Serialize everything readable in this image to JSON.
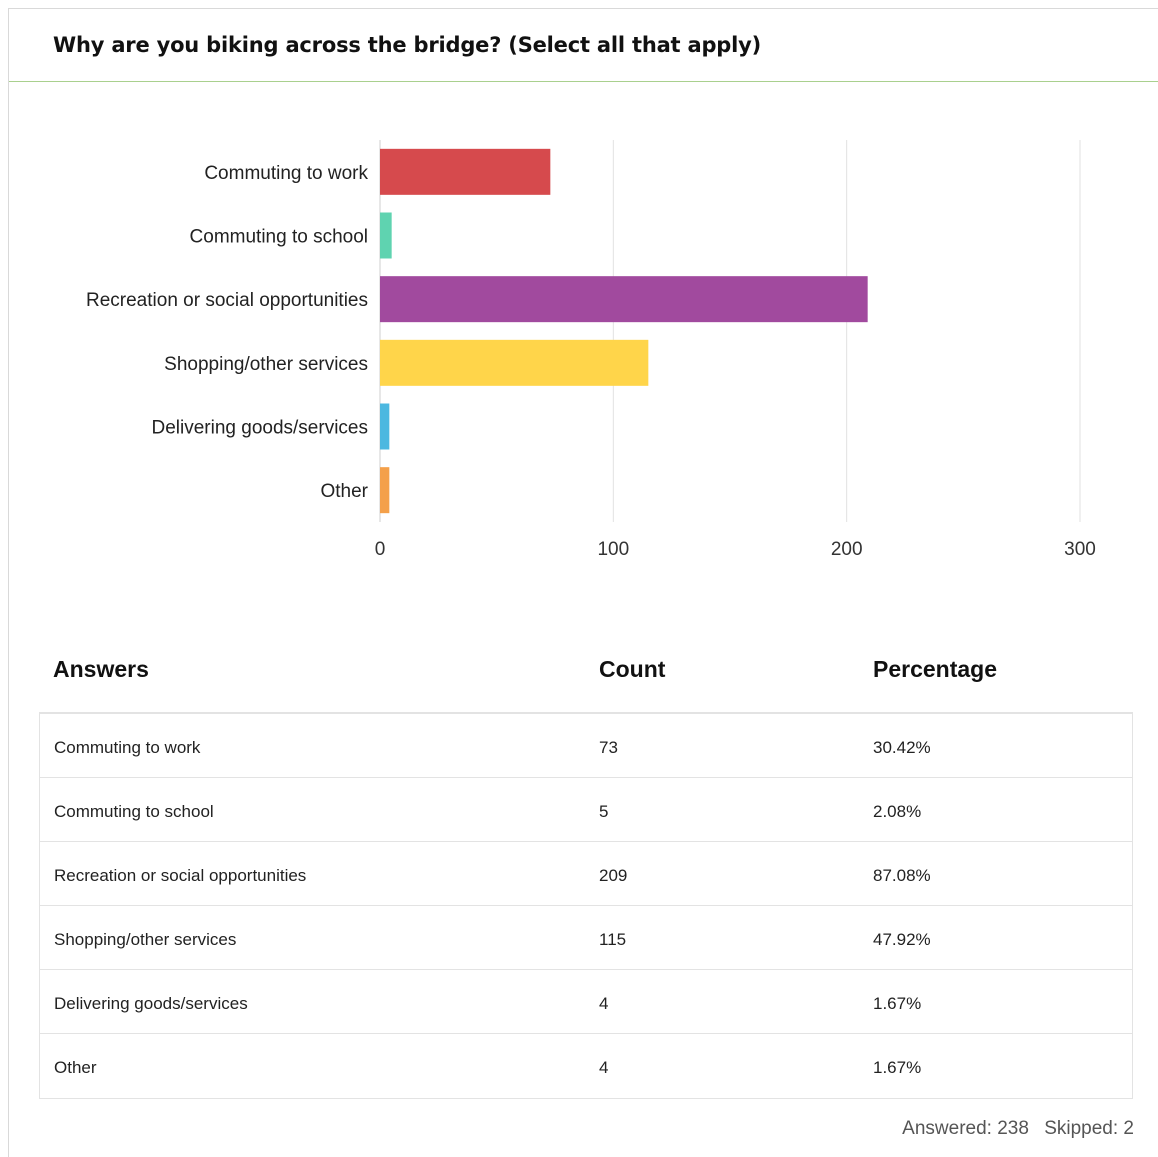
{
  "question": {
    "title": "Why are you biking across the bridge? (Select all that apply)"
  },
  "chart_data": {
    "type": "bar",
    "orientation": "horizontal",
    "categories": [
      "Commuting to work",
      "Commuting to school",
      "Recreation or social opportunities",
      "Shopping/other services",
      "Delivering goods/services",
      "Other"
    ],
    "values": [
      73,
      5,
      209,
      115,
      4,
      4
    ],
    "colors": [
      "#d64a4d",
      "#5fd3b0",
      "#a14a9e",
      "#ffd54a",
      "#4cb8e0",
      "#f4a04a"
    ],
    "xlim": [
      0,
      300
    ],
    "xticks": [
      0,
      100,
      200,
      300
    ],
    "grid": true,
    "legend": "none"
  },
  "table": {
    "headers": {
      "answers": "Answers",
      "count": "Count",
      "percentage": "Percentage"
    },
    "rows": [
      {
        "answer": "Commuting to work",
        "count": "73",
        "percentage": "30.42%"
      },
      {
        "answer": "Commuting to school",
        "count": "5",
        "percentage": "2.08%"
      },
      {
        "answer": "Recreation or social opportunities",
        "count": "209",
        "percentage": "87.08%"
      },
      {
        "answer": "Shopping/other services",
        "count": "115",
        "percentage": "47.92%"
      },
      {
        "answer": "Delivering goods/services",
        "count": "4",
        "percentage": "1.67%"
      },
      {
        "answer": "Other",
        "count": "4",
        "percentage": "1.67%"
      }
    ]
  },
  "summary": {
    "answered": "Answered: 238",
    "skipped": "Skipped: 2"
  }
}
